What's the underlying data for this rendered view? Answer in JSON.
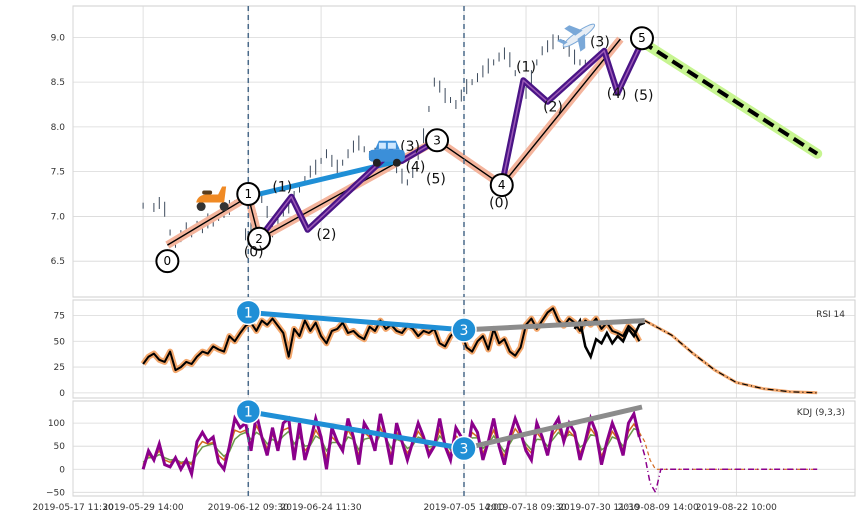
{
  "chart_data": [
    {
      "type": "line",
      "panel": "price",
      "title": "",
      "xlabel": "",
      "ylabel": "",
      "ylim": [
        6.1,
        9.35
      ],
      "yticks": [
        6.5,
        7.0,
        7.5,
        8.0,
        8.5,
        9.0
      ],
      "ytick_labels": [
        "6.5",
        "7.0",
        "7.5",
        "8.0",
        "8.5",
        "9.0"
      ],
      "grid": true,
      "price_series": {
        "name": "",
        "x": [
          0,
          2,
          3,
          4,
          5,
          6,
          7,
          8,
          9,
          10,
          11,
          12,
          13,
          14,
          15,
          16,
          17,
          18,
          19,
          20,
          21,
          22,
          23,
          24,
          25,
          26,
          27,
          28,
          29,
          30,
          31,
          32,
          33,
          34,
          35,
          36,
          37,
          38,
          39,
          40,
          41,
          42,
          43,
          44,
          45,
          46,
          47,
          48,
          49,
          50,
          51,
          52,
          53,
          54,
          55,
          56,
          57,
          58,
          59,
          60,
          61,
          62,
          63,
          64,
          65,
          66,
          67,
          68,
          69,
          70,
          71,
          72,
          73,
          74,
          75,
          76,
          77,
          78,
          79,
          80,
          81,
          82
        ],
        "y": [
          7.12,
          7.1,
          7.15,
          7.08,
          6.82,
          6.7,
          6.78,
          6.85,
          6.8,
          6.9,
          6.88,
          6.95,
          6.92,
          7.0,
          7.05,
          7.1,
          7.15,
          7.2,
          6.8,
          6.85,
          7.0,
          7.2,
          7.05,
          6.85,
          6.95,
          7.05,
          7.1,
          7.2,
          7.3,
          7.4,
          7.5,
          7.55,
          7.62,
          7.7,
          7.62,
          7.55,
          7.6,
          7.7,
          7.78,
          7.82,
          7.75,
          7.68,
          7.7,
          7.75,
          7.72,
          7.65,
          7.55,
          7.45,
          7.38,
          7.48,
          7.7,
          7.9,
          8.2,
          8.5,
          8.45,
          8.35,
          8.3,
          8.25,
          8.35,
          8.45,
          8.5,
          8.55,
          8.62,
          8.68,
          8.72,
          8.78,
          8.82,
          8.75,
          8.6,
          8.45,
          8.38,
          8.55,
          8.72,
          8.85,
          8.9,
          8.95,
          8.99,
          8.92,
          8.85,
          8.78,
          8.72,
          8.7
        ]
      },
      "wave_lines": [
        {
          "name": "primary-wave",
          "x": [
            4.5,
            19.5,
            21.5,
            54.5,
            66.5,
            88.5
          ],
          "y": [
            6.68,
            7.22,
            6.75,
            7.85,
            7.35,
            8.98
          ]
        },
        {
          "name": "purple-subwave-a",
          "x": [
            21.5,
            27.5,
            30.5,
            46,
            48,
            54.5
          ],
          "y": [
            6.75,
            7.22,
            6.85,
            7.72,
            7.62,
            7.85
          ]
        },
        {
          "name": "purple-subwave-b",
          "x": [
            66.5,
            70.5,
            75,
            85.5,
            88,
            92.5
          ],
          "y": [
            7.35,
            8.52,
            8.28,
            8.85,
            8.38,
            8.95
          ]
        }
      ],
      "blue_segment": {
        "x": [
          19.5,
          46
        ],
        "y": [
          7.22,
          7.6
        ]
      },
      "projection": {
        "x": [
          92.5,
          125
        ],
        "y": [
          8.95,
          7.7
        ]
      },
      "wave_markers": [
        {
          "label": "0",
          "x": 4.5,
          "y": 6.5
        },
        {
          "label": "1",
          "x": 19.5,
          "y": 7.25
        },
        {
          "label": "2",
          "x": 21.5,
          "y": 6.75
        },
        {
          "label": "3",
          "x": 54.5,
          "y": 7.85
        },
        {
          "label": "4",
          "x": 66.5,
          "y": 7.35
        },
        {
          "label": "5",
          "x": 92.5,
          "y": 8.99
        }
      ],
      "sub_labels": [
        {
          "text": "(0)",
          "x": 20.5,
          "y": 6.55
        },
        {
          "text": "(1)",
          "x": 25.8,
          "y": 7.28
        },
        {
          "text": "(2)",
          "x": 34,
          "y": 6.75
        },
        {
          "text": "(3)",
          "x": 49.5,
          "y": 7.73
        },
        {
          "text": "(4)",
          "x": 50.5,
          "y": 7.5
        },
        {
          "text": "(5)",
          "x": 54.3,
          "y": 7.37
        },
        {
          "text": "(0)",
          "x": 66,
          "y": 7.1
        },
        {
          "text": "(1)",
          "x": 71,
          "y": 8.62
        },
        {
          "text": "(2)",
          "x": 76,
          "y": 8.17
        },
        {
          "text": "(3)",
          "x": 84.7,
          "y": 8.9
        },
        {
          "text": "(4)",
          "x": 87.8,
          "y": 8.32
        },
        {
          "text": "(5)",
          "x": 92.8,
          "y": 8.3
        }
      ],
      "emoji_markers": [
        {
          "label": "scooter",
          "x": 12.8,
          "y": 7.2
        },
        {
          "label": "car",
          "x": 45.2,
          "y": 7.7
        },
        {
          "label": "airplane",
          "x": 80.8,
          "y": 9.02
        }
      ],
      "vlines_x": [
        19.5,
        59.5
      ]
    },
    {
      "type": "line",
      "panel": "rsi",
      "title": "RSI 14",
      "ylim": [
        -5,
        90
      ],
      "yticks": [
        0,
        25,
        50,
        75
      ],
      "ytick_labels": [
        "0",
        "25",
        "50",
        "75"
      ],
      "rsi": {
        "x": [
          0,
          1,
          2,
          3,
          4,
          5,
          6,
          7,
          8,
          9,
          10,
          11,
          12,
          13,
          14,
          15,
          16,
          17,
          18,
          19,
          20,
          21,
          22,
          23,
          24,
          25,
          26,
          27,
          28,
          29,
          30,
          31,
          32,
          33,
          34,
          35,
          36,
          37,
          38,
          39,
          40,
          41,
          42,
          43,
          44,
          45,
          46,
          47,
          48,
          49,
          50,
          51,
          52,
          53,
          54,
          55,
          56,
          57,
          58,
          59,
          60,
          61,
          62,
          63,
          64,
          65,
          66,
          67,
          68,
          69,
          70,
          71,
          72,
          73,
          74,
          75,
          76,
          77,
          78,
          79,
          80,
          81,
          82,
          83,
          84,
          85,
          86,
          87,
          88,
          89,
          90,
          91,
          92
        ],
        "y": [
          28,
          35,
          38,
          32,
          30,
          40,
          22,
          25,
          30,
          28,
          35,
          40,
          38,
          45,
          42,
          40,
          55,
          50,
          58,
          65,
          68,
          60,
          70,
          66,
          72,
          65,
          58,
          35,
          62,
          55,
          70,
          60,
          68,
          55,
          48,
          60,
          62,
          68,
          58,
          60,
          55,
          52,
          64,
          60,
          70,
          62,
          66,
          60,
          58,
          65,
          62,
          55,
          60,
          58,
          62,
          48,
          45,
          55,
          60,
          58,
          44,
          40,
          50,
          55,
          42,
          62,
          48,
          52,
          40,
          36,
          44,
          66,
          72,
          62,
          70,
          78,
          82,
          70,
          65,
          72,
          68,
          60,
          70,
          66,
          72,
          62,
          68,
          60,
          58,
          55,
          65,
          60,
          50
        ]
      },
      "rsi_fill_x": [
        80,
        81,
        82,
        83,
        84,
        85,
        86,
        87,
        88,
        89,
        90,
        91,
        92,
        93
      ],
      "rsi_fill_y": [
        62,
        70,
        45,
        35,
        52,
        48,
        58,
        48,
        55,
        50,
        62,
        55,
        66,
        68
      ],
      "projection": {
        "x": [
          93,
          98,
          102,
          106,
          110,
          115,
          120,
          125
        ],
        "y": [
          70,
          56,
          38,
          22,
          10,
          4,
          1,
          0
        ]
      },
      "divergence_blue": {
        "x": [
          19.5,
          59.5
        ],
        "y": [
          78,
          61
        ]
      },
      "divergence_gray": {
        "x": [
          59.5,
          93
        ],
        "y": [
          61,
          70
        ]
      },
      "markers": [
        {
          "label": "1",
          "x": 19.5,
          "y": 78
        },
        {
          "label": "3",
          "x": 59.5,
          "y": 61
        }
      ],
      "vlines_x": [
        19.5,
        59.5
      ]
    },
    {
      "type": "line",
      "panel": "kdj",
      "title": "KDJ (9,3,3)",
      "ylim": [
        -58,
        148
      ],
      "yticks": [
        -50,
        0,
        50,
        100
      ],
      "ytick_labels": [
        "−50",
        "0",
        "50",
        "100"
      ],
      "kdj": {
        "x": [
          0,
          1,
          2,
          3,
          4,
          5,
          6,
          7,
          8,
          9,
          10,
          11,
          12,
          13,
          14,
          15,
          16,
          17,
          18,
          19,
          20,
          21,
          22,
          23,
          24,
          25,
          26,
          27,
          28,
          29,
          30,
          31,
          32,
          33,
          34,
          35,
          36,
          37,
          38,
          39,
          40,
          41,
          42,
          43,
          44,
          45,
          46,
          47,
          48,
          49,
          50,
          51,
          52,
          53,
          54,
          55,
          56,
          57,
          58,
          59,
          60,
          61,
          62,
          63,
          64,
          65,
          66,
          67,
          68,
          69,
          70,
          71,
          72,
          73,
          74,
          75,
          76,
          77,
          78,
          79,
          80,
          81,
          82,
          83,
          84,
          85,
          86,
          87,
          88,
          89,
          90,
          91,
          92
        ],
        "j": [
          0,
          40,
          20,
          55,
          10,
          5,
          25,
          0,
          20,
          -10,
          60,
          80,
          60,
          70,
          15,
          0,
          50,
          110,
          90,
          100,
          40,
          120,
          70,
          30,
          90,
          40,
          100,
          110,
          20,
          100,
          20,
          60,
          110,
          70,
          0,
          90,
          60,
          40,
          110,
          70,
          10,
          100,
          80,
          40,
          120,
          70,
          10,
          100,
          60,
          20,
          60,
          100,
          70,
          30,
          50,
          110,
          50,
          20,
          90,
          70,
          30,
          100,
          80,
          20,
          60,
          110,
          50,
          10,
          70,
          110,
          80,
          40,
          20,
          100,
          70,
          30,
          90,
          110,
          60,
          100,
          80,
          20,
          60,
          110,
          80,
          10,
          60,
          100,
          70,
          30,
          100,
          120,
          70
        ],
        "k": [
          10,
          30,
          25,
          40,
          20,
          15,
          22,
          12,
          18,
          10,
          45,
          60,
          55,
          58,
          30,
          20,
          45,
          85,
          80,
          85,
          55,
          95,
          70,
          45,
          75,
          55,
          85,
          90,
          40,
          80,
          40,
          55,
          85,
          65,
          25,
          70,
          58,
          45,
          85,
          65,
          30,
          80,
          70,
          45,
          90,
          65,
          30,
          80,
          58,
          35,
          55,
          82,
          65,
          40,
          50,
          85,
          52,
          32,
          72,
          62,
          38,
          80,
          70,
          35,
          58,
          85,
          50,
          28,
          62,
          88,
          72,
          48,
          35,
          80,
          64,
          40,
          75,
          90,
          60,
          82,
          70,
          35,
          58,
          88,
          72,
          28,
          55,
          82,
          65,
          42,
          82,
          98,
          80
        ],
        "d": [
          15,
          25,
          25,
          32,
          25,
          20,
          22,
          15,
          18,
          14,
          32,
          48,
          52,
          55,
          40,
          28,
          38,
          65,
          75,
          80,
          65,
          80,
          72,
          55,
          65,
          58,
          72,
          82,
          55,
          70,
          50,
          52,
          72,
          65,
          40,
          58,
          58,
          50,
          70,
          65,
          42,
          65,
          68,
          52,
          75,
          68,
          45,
          65,
          60,
          45,
          52,
          70,
          65,
          48,
          50,
          72,
          58,
          42,
          62,
          62,
          45,
          68,
          68,
          45,
          55,
          72,
          55,
          38,
          55,
          75,
          72,
          55,
          42,
          65,
          64,
          50,
          65,
          80,
          68,
          75,
          72,
          48,
          55,
          75,
          72,
          42,
          50,
          70,
          65,
          50,
          70,
          88,
          84
        ]
      },
      "projection_j": {
        "x": [
          92,
          93,
          94,
          95,
          96,
          125
        ],
        "y": [
          70,
          30,
          -30,
          -50,
          0,
          0
        ]
      },
      "projection_k": {
        "x": [
          92,
          93,
          94,
          95,
          96,
          125
        ],
        "y": [
          80,
          60,
          20,
          0,
          0,
          0
        ]
      },
      "divergence_blue": {
        "x": [
          19.5,
          59.5
        ],
        "y": [
          125,
          45
        ]
      },
      "divergence_gray": {
        "x": [
          59.5,
          92.5
        ],
        "y": [
          45,
          135
        ]
      },
      "markers": [
        {
          "label": "1",
          "x": 19.5,
          "y": 125
        },
        {
          "label": "3",
          "x": 59.5,
          "y": 45
        }
      ],
      "vlines_x": [
        19.5,
        59.5
      ]
    }
  ],
  "xaxis": {
    "tick_x": [
      -13,
      0,
      19.5,
      33,
      59.5,
      71,
      84.5,
      95.5,
      110
    ],
    "tick_labels": [
      "2019-05-17 11:30",
      "2019-05-29 14:00",
      "2019-06-12 09:30",
      "2019-06-24 11:30",
      "2019-07-05 14:00",
      "2019-07-18 09:30",
      "2019-07-30 11:30",
      "2019-08-09 14:00",
      "2019-08-22 10:00"
    ],
    "xlim": [
      -13,
      132
    ]
  },
  "colors": {
    "grid": "#d8d8d8",
    "frame": "#cfcfcf",
    "tick_text": "#333333",
    "candle": "#3c4a5c",
    "primary_wave": "#f4b49c",
    "primary_line": "#000000",
    "purple": "#4a1486",
    "blue": "#1f8fd6",
    "gray": "#8c8c8c",
    "projection_glow": "#c7f591",
    "rsi_line": "#000000",
    "rsi_glow": "#f3a76c",
    "kdj_j": "#8b008b",
    "kdj_k": "#d2691e",
    "kdj_d": "#6a9a4a",
    "vline": "#4a6a8a",
    "marker_blue": "#1f8fd6",
    "scooter": "#f08a24",
    "car": "#3b8fd9",
    "plane": "#7aa8d8"
  }
}
